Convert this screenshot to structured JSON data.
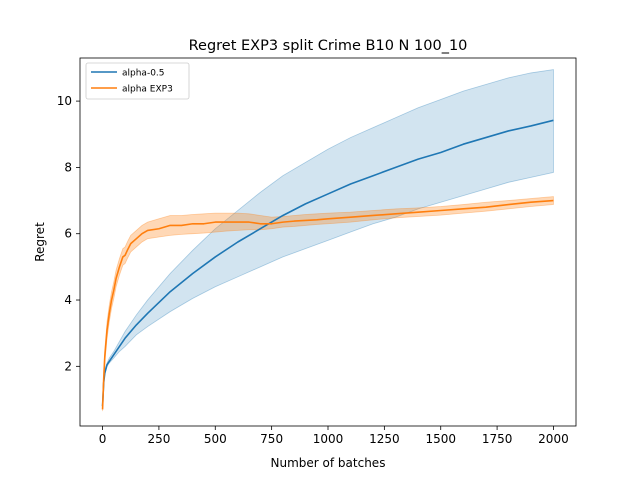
{
  "chart_data": {
    "type": "line",
    "title": "Regret EXP3 split Crime B10 N 100_10",
    "xlabel": "Number of batches",
    "ylabel": "Regret",
    "xlim": [
      -100,
      2100
    ],
    "ylim": [
      0.2,
      11.3
    ],
    "xticks": [
      0,
      250,
      500,
      750,
      1000,
      1250,
      1500,
      1750,
      2000
    ],
    "yticks": [
      2,
      4,
      6,
      8,
      10
    ],
    "grid": false,
    "legend_position": "top-left",
    "series": [
      {
        "name": "alpha-0.5",
        "color": "#1f77b4",
        "band_color": "#1f77b4",
        "x": [
          0,
          5,
          10,
          20,
          30,
          50,
          75,
          100,
          150,
          200,
          300,
          400,
          500,
          600,
          700,
          800,
          900,
          1000,
          1100,
          1200,
          1300,
          1400,
          1500,
          1600,
          1700,
          1800,
          1900,
          2000
        ],
        "y": [
          0.8,
          1.5,
          1.8,
          2.05,
          2.15,
          2.35,
          2.6,
          2.85,
          3.25,
          3.6,
          4.25,
          4.8,
          5.3,
          5.75,
          6.15,
          6.55,
          6.9,
          7.2,
          7.5,
          7.75,
          8.0,
          8.25,
          8.45,
          8.7,
          8.9,
          9.1,
          9.25,
          9.42
        ],
        "lower": [
          0.75,
          1.4,
          1.75,
          2.0,
          2.1,
          2.25,
          2.45,
          2.6,
          2.95,
          3.2,
          3.65,
          4.05,
          4.4,
          4.7,
          5.0,
          5.3,
          5.55,
          5.8,
          6.05,
          6.3,
          6.5,
          6.75,
          6.95,
          7.15,
          7.35,
          7.55,
          7.7,
          7.85
        ],
        "upper": [
          0.85,
          1.6,
          1.9,
          2.1,
          2.25,
          2.45,
          2.75,
          3.05,
          3.55,
          4.0,
          4.8,
          5.5,
          6.15,
          6.7,
          7.25,
          7.75,
          8.15,
          8.55,
          8.9,
          9.2,
          9.5,
          9.8,
          10.05,
          10.3,
          10.5,
          10.7,
          10.85,
          10.95
        ]
      },
      {
        "name": "alpha EXP3",
        "color": "#ff7f0e",
        "band_color": "#ff7f0e",
        "x": [
          0,
          5,
          10,
          20,
          30,
          40,
          50,
          60,
          75,
          90,
          100,
          110,
          125,
          150,
          175,
          200,
          250,
          300,
          350,
          400,
          450,
          500,
          550,
          600,
          650,
          700,
          750,
          800,
          850,
          900,
          950,
          1000,
          1100,
          1200,
          1300,
          1400,
          1500,
          1600,
          1700,
          1800,
          1900,
          2000
        ],
        "y": [
          0.7,
          1.6,
          2.3,
          3.1,
          3.6,
          4.0,
          4.3,
          4.65,
          5.0,
          5.3,
          5.35,
          5.5,
          5.7,
          5.85,
          6.0,
          6.1,
          6.15,
          6.25,
          6.25,
          6.3,
          6.3,
          6.35,
          6.35,
          6.35,
          6.35,
          6.3,
          6.3,
          6.35,
          6.38,
          6.4,
          6.42,
          6.45,
          6.5,
          6.55,
          6.6,
          6.65,
          6.7,
          6.75,
          6.8,
          6.88,
          6.95,
          7.0
        ],
        "lower": [
          0.65,
          1.4,
          2.1,
          2.85,
          3.35,
          3.75,
          4.05,
          4.4,
          4.75,
          5.05,
          5.1,
          5.25,
          5.45,
          5.6,
          5.75,
          5.85,
          5.9,
          5.95,
          5.98,
          6.0,
          6.02,
          6.05,
          6.08,
          6.1,
          6.12,
          6.12,
          6.15,
          6.2,
          6.22,
          6.25,
          6.28,
          6.3,
          6.35,
          6.42,
          6.48,
          6.52,
          6.56,
          6.62,
          6.68,
          6.75,
          6.82,
          6.88
        ],
        "upper": [
          0.75,
          1.8,
          2.5,
          3.35,
          3.85,
          4.25,
          4.55,
          4.9,
          5.25,
          5.55,
          5.6,
          5.75,
          5.95,
          6.1,
          6.25,
          6.35,
          6.45,
          6.55,
          6.55,
          6.58,
          6.6,
          6.62,
          6.62,
          6.62,
          6.6,
          6.55,
          6.5,
          6.52,
          6.55,
          6.58,
          6.6,
          6.62,
          6.65,
          6.7,
          6.75,
          6.78,
          6.82,
          6.88,
          6.95,
          7.0,
          7.06,
          7.12
        ]
      }
    ]
  }
}
